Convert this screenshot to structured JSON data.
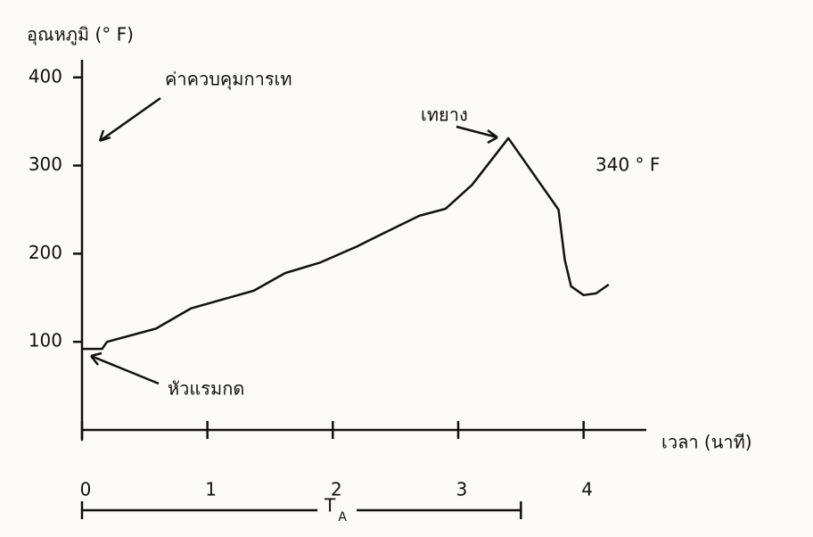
{
  "chart_data": {
    "type": "line",
    "title": "อุณหภูมิ (° F)",
    "x_label": "เวลา (นาที)",
    "x": [
      0,
      0.16,
      0.2,
      0.59,
      0.87,
      1.37,
      1.62,
      1.9,
      2.19,
      2.33,
      2.69,
      2.9,
      3.11,
      3.4,
      3.8,
      3.85,
      3.9,
      4.0,
      4.1,
      4.2
    ],
    "values": [
      92,
      92,
      100,
      115,
      138,
      158,
      178,
      190,
      208,
      218,
      243,
      251,
      278,
      331,
      250,
      193,
      163,
      153,
      155,
      165
    ],
    "color": "#111111",
    "xlim": [
      0,
      4.5
    ],
    "xticks": [
      0,
      1,
      2,
      3,
      4
    ],
    "ylim": [
      0,
      420
    ],
    "yticks": [
      100,
      200,
      300,
      400
    ],
    "annotations": {
      "pour_control": "ค่าควบคุมการเท",
      "pour_rubber": "เทยาง",
      "temp": "340 ° F",
      "ram_press": "หัวแรมกด"
    },
    "span": {
      "label": "T",
      "sub": "A",
      "start": 0,
      "end": 3.5
    }
  }
}
